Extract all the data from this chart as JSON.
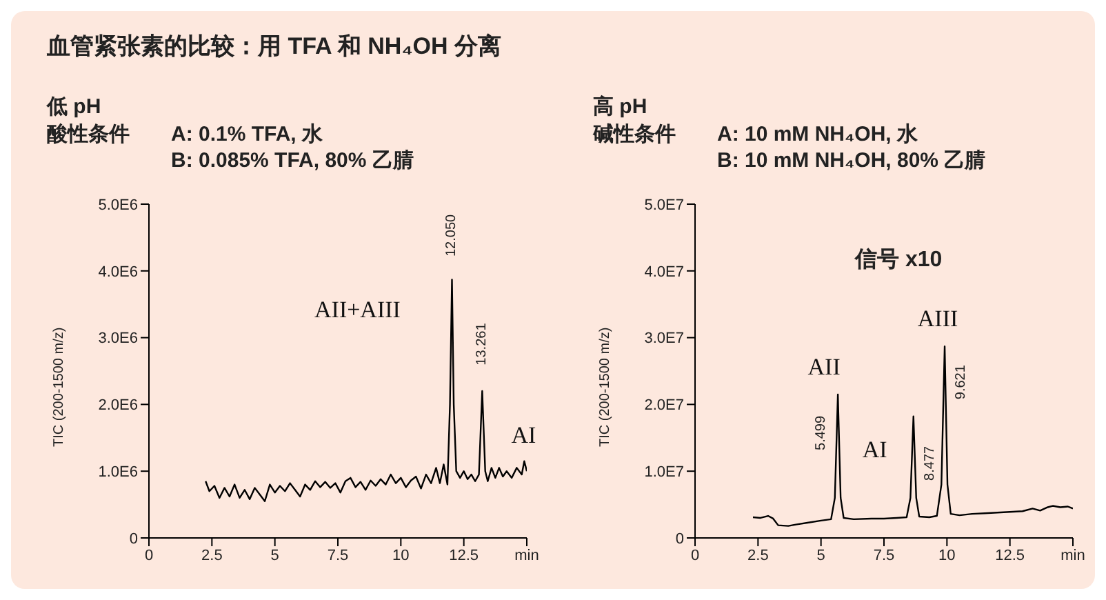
{
  "chart_data": [
    {
      "type": "line",
      "title": "血管紧张素的比较：用 TFA 和 NH₄OH 分离",
      "subtitle": "低 pH",
      "ylabel": "TIC (200-1500 m/z)",
      "color": "#000000",
      "annotations": [
        "酸性条件",
        "A: 0.1% TFA, 水",
        "B: 0.085% TFA, 80% 乙腈",
        "AII+AIII",
        {
          "text": "AI",
          "x": 13.23,
          "y": 2200000
        },
        {
          "text": "12.050",
          "x": 12.03,
          "y": 3870000
        },
        {
          "text": "13.261",
          "x": 13.23,
          "y": 2200000
        }
      ],
      "xlim": [
        0,
        15
      ],
      "xticks": [
        0,
        2.5,
        5,
        7.5,
        10,
        12.5,
        {
          "value": 15,
          "label": "min"
        }
      ],
      "ylim": [
        0,
        5000000
      ],
      "yticks": [
        0,
        {
          "value": 1000000,
          "label": "1.0E6"
        },
        {
          "value": 2000000,
          "label": "2.0E6"
        },
        {
          "value": 3000000,
          "label": "3.0E6"
        },
        {
          "value": 4000000,
          "label": "4.0E6"
        },
        {
          "value": 5000000,
          "label": "5.0E6"
        }
      ],
      "x": [
        2.25,
        2.4,
        2.6,
        2.8,
        3.0,
        3.2,
        3.4,
        3.6,
        3.8,
        4.0,
        4.2,
        4.4,
        4.6,
        4.8,
        5.0,
        5.2,
        5.4,
        5.6,
        5.8,
        6.0,
        6.2,
        6.4,
        6.6,
        6.8,
        7.0,
        7.2,
        7.4,
        7.6,
        7.8,
        8.0,
        8.2,
        8.4,
        8.6,
        8.8,
        9.0,
        9.2,
        9.4,
        9.6,
        9.8,
        10.0,
        10.2,
        10.4,
        10.6,
        10.8,
        11.0,
        11.2,
        11.4,
        11.55,
        11.7,
        11.85,
        11.95,
        12.03,
        12.1,
        12.2,
        12.35,
        12.5,
        12.65,
        12.8,
        12.95,
        13.1,
        13.23,
        13.35,
        13.45,
        13.6,
        13.75,
        13.9,
        14.05,
        14.2,
        14.4,
        14.6,
        14.8,
        14.9,
        15.0
      ],
      "values": [
        850000,
        700000,
        780000,
        600000,
        750000,
        620000,
        800000,
        600000,
        720000,
        580000,
        750000,
        650000,
        550000,
        800000,
        680000,
        780000,
        700000,
        820000,
        720000,
        620000,
        800000,
        720000,
        850000,
        760000,
        840000,
        750000,
        820000,
        680000,
        850000,
        900000,
        760000,
        840000,
        720000,
        860000,
        780000,
        880000,
        800000,
        950000,
        820000,
        900000,
        760000,
        860000,
        920000,
        740000,
        950000,
        820000,
        1050000,
        820000,
        1100000,
        800000,
        2000000,
        3870000,
        2000000,
        1000000,
        900000,
        1000000,
        880000,
        950000,
        850000,
        950000,
        2200000,
        1000000,
        850000,
        1050000,
        900000,
        1050000,
        920000,
        1000000,
        900000,
        1050000,
        950000,
        1150000,
        1000000
      ]
    },
    {
      "type": "line",
      "subtitle": "高 pH",
      "ylabel": "TIC (200-1500 m/z)",
      "color": "#000000",
      "annotations": [
        "碱性条件",
        "A: 10 mM NH₄OH,  水",
        "B: 10 mM NH₄OH, 80% 乙腈",
        "信号 x10",
        {
          "text": "AII",
          "x": 5.67,
          "y": 21500000
        },
        {
          "text": "5.499",
          "x": 5.67,
          "y": 21500000
        },
        {
          "text": "AI",
          "x": 8.67,
          "y": 18200000
        },
        {
          "text": "8.477",
          "x": 8.67,
          "y": 18200000
        },
        {
          "text": "AIII",
          "x": 9.91,
          "y": 28700000
        },
        {
          "text": "9.621",
          "x": 9.91,
          "y": 28700000
        }
      ],
      "xlim": [
        0,
        15
      ],
      "xticks": [
        0,
        2.5,
        5,
        7.5,
        10,
        12.5,
        {
          "value": 15,
          "label": "min"
        }
      ],
      "ylim": [
        0,
        50000000
      ],
      "yticks": [
        0,
        {
          "value": 10000000,
          "label": "1.0E7"
        },
        {
          "value": 20000000,
          "label": "2.0E7"
        },
        {
          "value": 30000000,
          "label": "3.0E7"
        },
        {
          "value": 40000000,
          "label": "4.0E7"
        },
        {
          "value": 50000000,
          "label": "5.0E7"
        }
      ],
      "x": [
        2.3,
        2.6,
        2.9,
        3.1,
        3.3,
        3.7,
        4.0,
        4.5,
        5.0,
        5.4,
        5.55,
        5.67,
        5.78,
        5.9,
        6.3,
        7.0,
        7.5,
        8.0,
        8.4,
        8.55,
        8.67,
        8.78,
        8.9,
        9.3,
        9.6,
        9.78,
        9.91,
        10.02,
        10.15,
        10.5,
        11.0,
        11.5,
        12.0,
        12.5,
        13.0,
        13.4,
        13.7,
        14.0,
        14.2,
        14.5,
        14.8,
        15.0
      ],
      "values": [
        3100000,
        3000000,
        3300000,
        2900000,
        1900000,
        1800000,
        2000000,
        2300000,
        2600000,
        2800000,
        6000000,
        21500000,
        6000000,
        3000000,
        2800000,
        2900000,
        2900000,
        3000000,
        3100000,
        6000000,
        18200000,
        6000000,
        3200000,
        3100000,
        3300000,
        8000000,
        28700000,
        8000000,
        3600000,
        3400000,
        3600000,
        3700000,
        3800000,
        3900000,
        4000000,
        4400000,
        4100000,
        4600000,
        4800000,
        4600000,
        4700000,
        4400000
      ]
    }
  ]
}
